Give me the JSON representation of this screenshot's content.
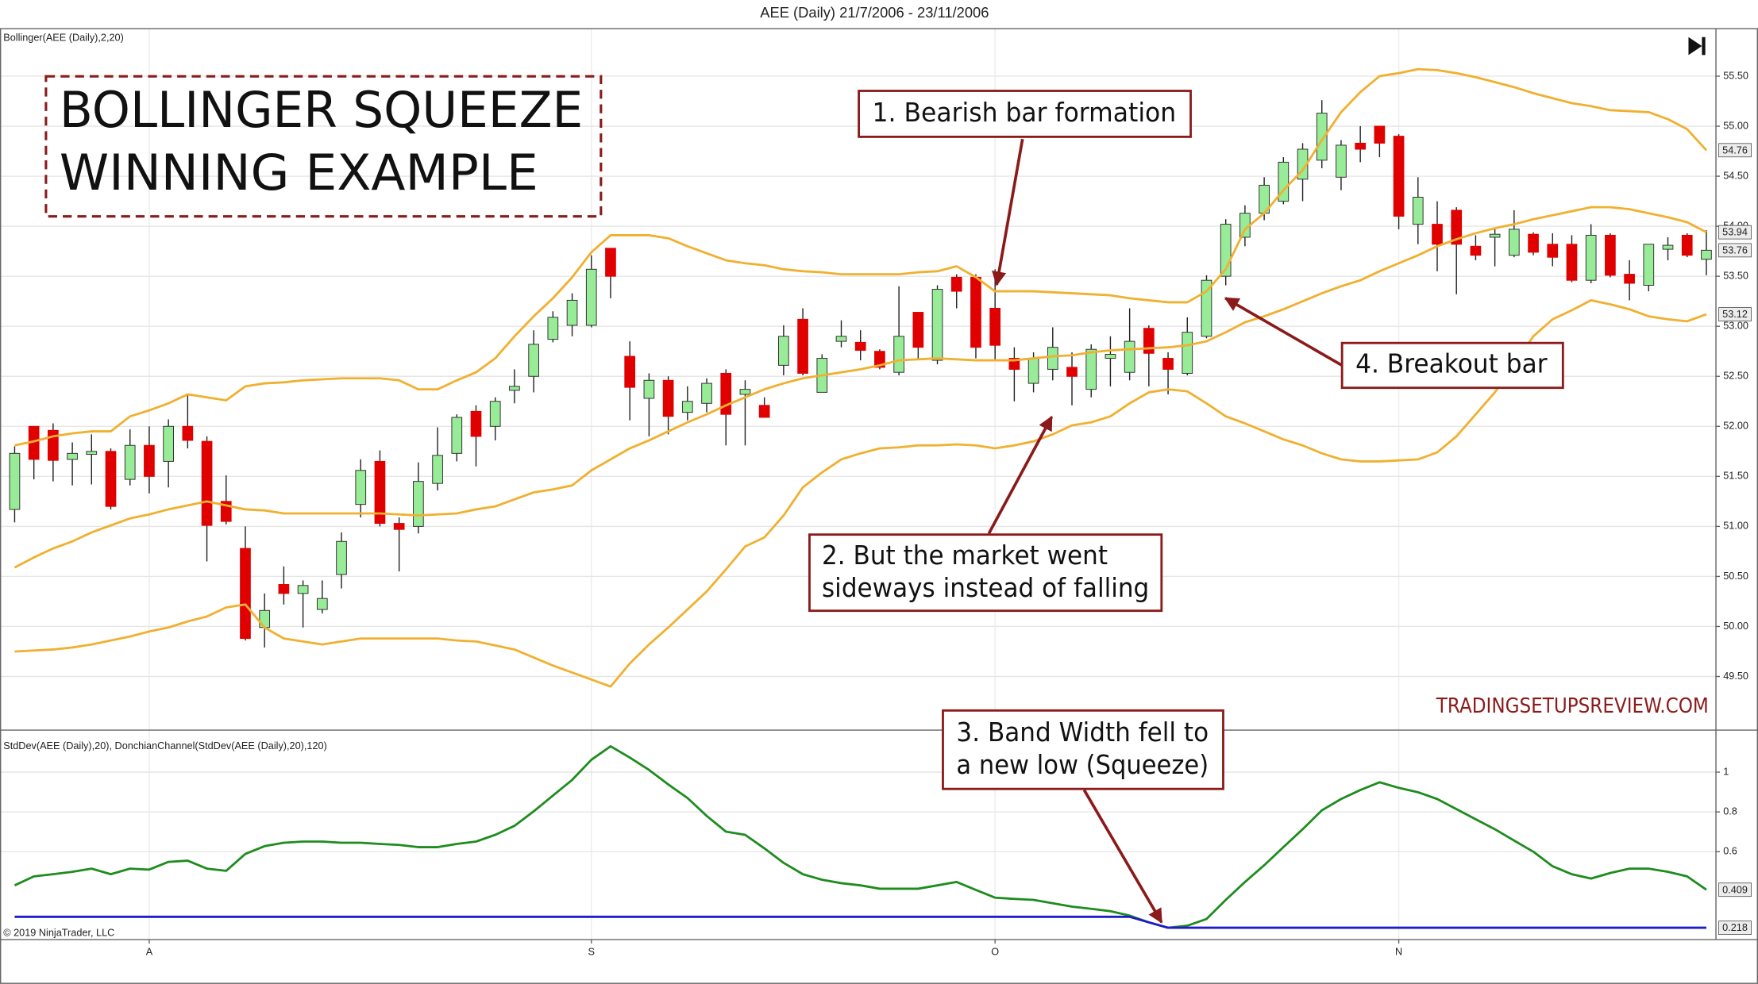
{
  "chart_data": [
    {
      "type": "candlestick",
      "title": "AEE (Daily)  21/7/2006 - 23/11/2006",
      "subtitle": "Bollinger(AEE (Daily),2,20)",
      "categories": [
        null,
        null,
        null,
        null,
        null,
        null,
        null,
        "A",
        null,
        null,
        null,
        null,
        null,
        null,
        null,
        null,
        null,
        null,
        null,
        null,
        null,
        null,
        null,
        null,
        null,
        null,
        null,
        null,
        null,
        null,
        "S",
        null,
        null,
        null,
        null,
        null,
        null,
        null,
        null,
        null,
        null,
        null,
        null,
        null,
        null,
        null,
        null,
        null,
        null,
        null,
        null,
        "O",
        null,
        null,
        null,
        null,
        null,
        null,
        null,
        null,
        null,
        null,
        null,
        null,
        null,
        null,
        null,
        null,
        null,
        null,
        null,
        null,
        "N",
        null,
        null,
        null,
        null,
        null,
        null,
        null,
        null,
        null,
        null,
        null,
        null,
        null,
        null,
        null,
        null
      ],
      "open": [
        51.17,
        52.0,
        51.96,
        51.67,
        51.72,
        51.75,
        51.47,
        51.81,
        51.65,
        52.0,
        51.85,
        51.25,
        50.78,
        49.99,
        50.42,
        50.33,
        50.17,
        50.52,
        51.22,
        51.65,
        51.03,
        51.0,
        51.43,
        51.73,
        52.15,
        52.0,
        52.36,
        52.5,
        52.87,
        53.01,
        53.01,
        53.78,
        52.7,
        52.28,
        52.46,
        52.14,
        52.23,
        52.53,
        52.32,
        52.21,
        52.61,
        53.07,
        52.34,
        52.85,
        52.84,
        52.75,
        52.54,
        53.14,
        52.66,
        53.49,
        53.49,
        53.18,
        52.68,
        52.43,
        52.57,
        52.59,
        52.37,
        52.68,
        52.54,
        52.98,
        52.68,
        52.53,
        52.9,
        53.5,
        53.89,
        54.13,
        54.25,
        54.47,
        54.66,
        54.49,
        54.83,
        55.0,
        54.9,
        54.02,
        54.02,
        54.16,
        53.8,
        53.89,
        53.71,
        53.92,
        53.82,
        53.82,
        53.46,
        53.91,
        53.52,
        53.41,
        53.77,
        53.91,
        53.67
      ],
      "high": [
        51.8,
        52.0,
        52.03,
        51.84,
        51.92,
        51.78,
        51.97,
        52.0,
        52.07,
        52.32,
        51.9,
        51.51,
        51.0,
        50.33,
        50.6,
        50.46,
        50.46,
        50.94,
        51.67,
        51.76,
        51.09,
        51.64,
        51.99,
        52.12,
        52.21,
        52.29,
        52.57,
        52.96,
        53.15,
        53.33,
        53.71,
        53.78,
        52.85,
        52.53,
        52.5,
        52.4,
        52.48,
        52.57,
        52.46,
        52.29,
        53.01,
        53.18,
        52.72,
        53.06,
        52.96,
        52.77,
        53.4,
        53.14,
        53.41,
        53.52,
        53.52,
        53.57,
        52.79,
        52.74,
        52.99,
        52.74,
        52.82,
        52.9,
        53.18,
        53.01,
        52.74,
        53.09,
        53.51,
        54.07,
        54.21,
        54.49,
        54.69,
        54.83,
        55.26,
        54.86,
        55.0,
        55.0,
        54.92,
        54.49,
        54.25,
        54.19,
        53.91,
        53.97,
        54.16,
        53.94,
        53.93,
        53.91,
        54.02,
        53.93,
        53.66,
        53.82,
        53.89,
        53.93,
        53.96
      ],
      "low": [
        51.04,
        51.47,
        51.45,
        51.41,
        51.42,
        51.17,
        51.41,
        51.33,
        51.39,
        51.78,
        50.65,
        51.02,
        49.86,
        49.79,
        50.22,
        49.99,
        50.13,
        50.38,
        51.09,
        51.0,
        50.55,
        50.93,
        51.36,
        51.65,
        51.6,
        51.86,
        52.23,
        52.34,
        52.84,
        52.9,
        52.99,
        53.28,
        52.06,
        51.9,
        51.92,
        52.06,
        52.14,
        51.81,
        51.81,
        52.09,
        52.51,
        52.51,
        52.34,
        52.79,
        52.66,
        52.57,
        52.51,
        52.68,
        52.62,
        53.18,
        52.68,
        52.66,
        52.25,
        52.34,
        52.46,
        52.21,
        52.29,
        52.4,
        52.46,
        52.4,
        52.32,
        52.51,
        52.88,
        53.41,
        53.8,
        54.06,
        54.22,
        54.25,
        54.58,
        54.36,
        54.64,
        54.69,
        53.97,
        53.82,
        53.55,
        53.32,
        53.66,
        53.6,
        53.69,
        53.71,
        53.6,
        53.44,
        53.43,
        53.49,
        53.26,
        53.35,
        53.66,
        53.69,
        53.51
      ],
      "close": [
        51.73,
        51.67,
        51.66,
        51.73,
        51.75,
        51.2,
        51.81,
        51.5,
        52.0,
        51.86,
        51.01,
        51.05,
        49.88,
        50.16,
        50.33,
        50.41,
        50.28,
        50.85,
        51.56,
        51.03,
        50.97,
        51.45,
        51.71,
        52.09,
        51.9,
        52.25,
        52.4,
        52.82,
        53.09,
        53.26,
        53.57,
        53.5,
        52.39,
        52.46,
        52.1,
        52.25,
        52.43,
        52.12,
        52.37,
        52.09,
        52.9,
        52.53,
        52.68,
        52.9,
        52.76,
        52.59,
        52.9,
        52.79,
        53.37,
        53.35,
        52.79,
        52.81,
        52.57,
        52.68,
        52.79,
        52.5,
        52.77,
        52.72,
        52.85,
        52.73,
        52.57,
        52.94,
        53.46,
        54.02,
        54.13,
        54.41,
        54.64,
        54.77,
        55.13,
        54.81,
        54.77,
        54.83,
        54.1,
        54.29,
        53.82,
        53.82,
        53.71,
        53.92,
        53.97,
        53.74,
        53.69,
        53.46,
        53.91,
        53.51,
        53.43,
        53.82,
        53.81,
        53.71,
        53.76
      ],
      "up_color": "#98ec98",
      "down_color": "#e00000",
      "overlays": [
        {
          "color": "#f0b030",
          "values": [
            51.81,
            51.85,
            51.9,
            51.93,
            51.95,
            51.95,
            52.1,
            52.16,
            52.23,
            52.32,
            52.29,
            52.26,
            52.4,
            52.43,
            52.44,
            52.46,
            52.47,
            52.48,
            52.48,
            52.48,
            52.46,
            52.37,
            52.37,
            52.46,
            52.54,
            52.68,
            52.9,
            53.1,
            53.28,
            53.49,
            53.74,
            53.91,
            53.91,
            53.91,
            53.88,
            53.8,
            53.73,
            53.66,
            53.63,
            53.61,
            53.57,
            53.55,
            53.54,
            53.52,
            53.52,
            53.52,
            53.52,
            53.54,
            53.55,
            53.6,
            53.49,
            53.35,
            53.35,
            53.35,
            53.34,
            53.33,
            53.32,
            53.31,
            53.28,
            53.26,
            53.24,
            53.24,
            53.35,
            53.57,
            53.97,
            54.13,
            54.36,
            54.56,
            54.86,
            55.14,
            55.34,
            55.5,
            55.53,
            55.57,
            55.56,
            55.53,
            55.49,
            55.44,
            55.39,
            55.33,
            55.28,
            55.23,
            55.2,
            55.16,
            55.15,
            55.14,
            55.07,
            54.97,
            54.76
          ]
        },
        {
          "color": "#f0b030",
          "values": [
            50.59,
            50.69,
            50.78,
            50.85,
            50.94,
            51.01,
            51.08,
            51.12,
            51.17,
            51.21,
            51.25,
            51.21,
            51.17,
            51.16,
            51.13,
            51.13,
            51.13,
            51.13,
            51.13,
            51.13,
            51.12,
            51.11,
            51.12,
            51.13,
            51.17,
            51.2,
            51.27,
            51.34,
            51.37,
            51.41,
            51.56,
            51.67,
            51.78,
            51.86,
            51.95,
            52.04,
            52.12,
            52.21,
            52.29,
            52.37,
            52.43,
            52.48,
            52.51,
            52.54,
            52.57,
            52.61,
            52.66,
            52.67,
            52.68,
            52.67,
            52.66,
            52.66,
            52.66,
            52.68,
            52.7,
            52.71,
            52.74,
            52.76,
            52.77,
            52.78,
            52.79,
            52.81,
            52.85,
            52.94,
            53.04,
            53.1,
            53.17,
            53.25,
            53.33,
            53.4,
            53.46,
            53.55,
            53.63,
            53.71,
            53.8,
            53.87,
            53.93,
            53.98,
            54.02,
            54.07,
            54.11,
            54.15,
            54.19,
            54.19,
            54.17,
            54.13,
            54.09,
            54.04,
            53.94
          ]
        },
        {
          "color": "#f0b030",
          "values": [
            49.75,
            49.76,
            49.77,
            49.79,
            49.82,
            49.86,
            49.9,
            49.95,
            49.99,
            50.05,
            50.1,
            50.19,
            50.22,
            49.99,
            49.88,
            49.85,
            49.82,
            49.85,
            49.88,
            49.88,
            49.88,
            49.88,
            49.88,
            49.86,
            49.85,
            49.81,
            49.77,
            49.69,
            49.61,
            49.54,
            49.47,
            49.4,
            49.63,
            49.82,
            49.99,
            50.17,
            50.35,
            50.57,
            50.8,
            50.89,
            51.11,
            51.39,
            51.54,
            51.67,
            51.73,
            51.78,
            51.79,
            51.81,
            51.81,
            51.82,
            51.81,
            51.78,
            51.81,
            51.85,
            51.92,
            52.01,
            52.04,
            52.1,
            52.23,
            52.34,
            52.37,
            52.35,
            52.23,
            52.1,
            52.03,
            51.95,
            51.87,
            51.81,
            51.73,
            51.67,
            51.65,
            51.65,
            51.66,
            51.67,
            51.74,
            51.9,
            52.12,
            52.34,
            52.62,
            52.9,
            53.07,
            53.16,
            53.26,
            53.22,
            53.17,
            53.1,
            53.07,
            53.05,
            53.12
          ]
        }
      ],
      "ylim": [
        48.97,
        55.98
      ],
      "yticks": [
        {
          "value": 49.5,
          "label": "49.50"
        },
        {
          "value": 50,
          "label": "50.00"
        },
        {
          "value": 50.5,
          "label": "50.50"
        },
        {
          "value": 51,
          "label": "51.00"
        },
        {
          "value": 51.5,
          "label": "51.50"
        },
        {
          "value": 52,
          "label": "52.00"
        },
        {
          "value": 52.5,
          "label": "52.50"
        },
        {
          "value": 53,
          "label": "53.00"
        },
        {
          "value": 53.5,
          "label": "53.50"
        },
        {
          "value": 54,
          "label": "54.00"
        },
        {
          "value": 54.5,
          "label": "54.50"
        },
        {
          "value": 55,
          "label": "55.00"
        },
        {
          "value": 55.5,
          "label": "55.50"
        }
      ],
      "grid": true
    },
    {
      "type": "line",
      "subtitle": "StdDev(AEE (Daily),20), DonchianChannel(StdDev(AEE (Daily),20),120)",
      "series": [
        {
          "color": "#1e8c1e",
          "values": [
            0.431,
            0.476,
            0.487,
            0.499,
            0.515,
            0.487,
            0.515,
            0.51,
            0.549,
            0.555,
            0.515,
            0.504,
            0.589,
            0.628,
            0.645,
            0.651,
            0.651,
            0.645,
            0.645,
            0.639,
            0.634,
            0.623,
            0.623,
            0.639,
            0.651,
            0.685,
            0.73,
            0.803,
            0.882,
            0.961,
            1.062,
            1.13,
            1.073,
            1.011,
            0.938,
            0.87,
            0.78,
            0.701,
            0.685,
            0.617,
            0.544,
            0.487,
            0.459,
            0.442,
            0.431,
            0.414,
            0.414,
            0.414,
            0.431,
            0.448,
            0.408,
            0.369,
            0.363,
            0.358,
            0.341,
            0.324,
            0.313,
            0.301,
            0.279,
            0.245,
            0.218,
            0.228,
            0.262,
            0.358,
            0.448,
            0.532,
            0.623,
            0.713,
            0.808,
            0.865,
            0.91,
            0.949,
            0.921,
            0.899,
            0.865,
            0.814,
            0.763,
            0.713,
            0.656,
            0.6,
            0.527,
            0.487,
            0.465,
            0.493,
            0.515,
            0.515,
            0.499,
            0.476,
            0.409
          ]
        },
        {
          "color": "#1c1cc8",
          "values": [
            0.273,
            0.273,
            0.273,
            0.273,
            0.273,
            0.273,
            0.273,
            0.273,
            0.273,
            0.273,
            0.273,
            0.273,
            0.273,
            0.273,
            0.273,
            0.273,
            0.273,
            0.273,
            0.273,
            0.273,
            0.273,
            0.273,
            0.273,
            0.273,
            0.273,
            0.273,
            0.273,
            0.273,
            0.273,
            0.273,
            0.273,
            0.273,
            0.273,
            0.273,
            0.273,
            0.273,
            0.273,
            0.273,
            0.273,
            0.273,
            0.273,
            0.273,
            0.273,
            0.273,
            0.273,
            0.273,
            0.273,
            0.273,
            0.273,
            0.273,
            0.273,
            0.273,
            0.273,
            0.273,
            0.273,
            0.273,
            0.273,
            0.273,
            0.273,
            0.245,
            0.218,
            0.218,
            0.218,
            0.218,
            0.218,
            0.218,
            0.218,
            0.218,
            0.218,
            0.218,
            0.218,
            0.218,
            0.218,
            0.218,
            0.218,
            0.218,
            0.218,
            0.218,
            0.218,
            0.218,
            0.218,
            0.218,
            0.218,
            0.218,
            0.218,
            0.218,
            0.218,
            0.218,
            0.218
          ]
        }
      ],
      "ylim": [
        0.161,
        1.214
      ],
      "yticks": [
        0.6,
        0.8,
        1
      ],
      "grid": true
    }
  ],
  "annotations": {
    "headline": [
      "BOLLINGER SQUEEZE",
      "WINNING EXAMPLE"
    ],
    "callouts": [
      [
        "1. Bearish bar formation"
      ],
      [
        "2. But the market went",
        "sideways instead of falling"
      ],
      [
        "3. Band Width fell to",
        "a new low (Squeeze)"
      ],
      [
        "4. Breakout bar"
      ]
    ],
    "watermark": "TRADINGSETUPSREVIEW.COM"
  },
  "copyright": "© 2019 NinjaTrader, LLC"
}
